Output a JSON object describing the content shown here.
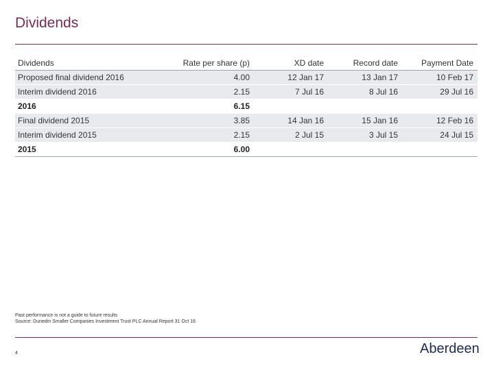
{
  "title": "Dividends",
  "table": {
    "headers": [
      "Dividends",
      "Rate per share (p)",
      "XD date",
      "Record date",
      "Payment Date"
    ],
    "rows": [
      {
        "cells": [
          "Proposed final dividend 2016",
          "4.00",
          "12 Jan 17",
          "13 Jan 17",
          "10 Feb 17"
        ],
        "shaded": true,
        "total": false
      },
      {
        "cells": [
          "Interim dividend 2016",
          "2.15",
          "7 Jul 16",
          "8 Jul 16",
          "29 Jul 16"
        ],
        "shaded": true,
        "total": false
      },
      {
        "cells": [
          "2016",
          "6.15",
          "",
          "",
          ""
        ],
        "shaded": false,
        "total": true
      },
      {
        "cells": [
          "Final dividend 2015",
          "3.85",
          "14 Jan 16",
          "15 Jan 16",
          "12 Feb 16"
        ],
        "shaded": true,
        "total": false
      },
      {
        "cells": [
          "Interim dividend 2015",
          "2.15",
          "2 Jul 15",
          "3 Jul 15",
          "24 Jul 15"
        ],
        "shaded": true,
        "total": false
      },
      {
        "cells": [
          "2015",
          "6.00",
          "",
          "",
          ""
        ],
        "shaded": false,
        "total": true
      }
    ]
  },
  "footnote": {
    "line1": "Past performance is not a guide to future results",
    "line2": "Source: Dunedin Smaller Companies Investment Trust PLC Annual Report 31 Oct 16"
  },
  "page_number": "4",
  "logo_text": "Aberdeen",
  "colors": {
    "accent": "#7b2a52",
    "logo": "#1d2b5a",
    "shade": "#e8eaee"
  }
}
